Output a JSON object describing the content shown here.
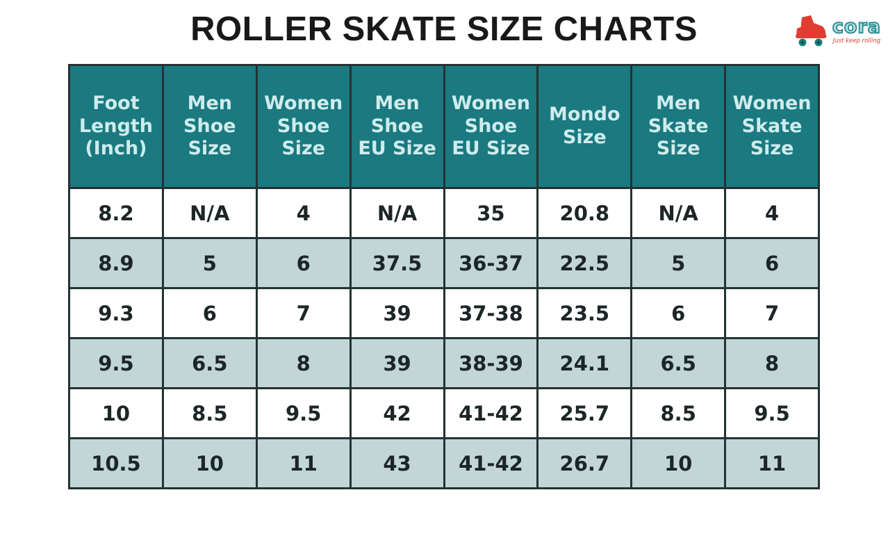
{
  "page_title": "ROLLER SKATE SIZE CHARTS",
  "logo": {
    "brand": "cora",
    "tagline": "Just keep rolling"
  },
  "table": {
    "header_lines": [
      "Foot\nLength\n(Inch)",
      "Men\nShoe\nSize",
      "Women\nShoe\nSize",
      "Men\nShoe\nEU Size",
      "Women\nShoe\nEU Size",
      "Mondo\nSize",
      "Men\nSkate\nSize",
      "Women\nSkate\nSize"
    ]
  },
  "chart_data": {
    "type": "table",
    "title": "ROLLER SKATE SIZE CHARTS",
    "columns": [
      "Foot Length (Inch)",
      "Men Shoe Size",
      "Women Shoe Size",
      "Men Shoe EU Size",
      "Women Shoe EU Size",
      "Mondo Size",
      "Men Skate Size",
      "Women Skate Size"
    ],
    "rows": [
      [
        "8.2",
        "N/A",
        "4",
        "N/A",
        "35",
        "20.8",
        "N/A",
        "4"
      ],
      [
        "8.9",
        "5",
        "6",
        "37.5",
        "36-37",
        "22.5",
        "5",
        "6"
      ],
      [
        "9.3",
        "6",
        "7",
        "39",
        "37-38",
        "23.5",
        "6",
        "7"
      ],
      [
        "9.5",
        "6.5",
        "8",
        "39",
        "38-39",
        "24.1",
        "6.5",
        "8"
      ],
      [
        "10",
        "8.5",
        "9.5",
        "42",
        "41-42",
        "25.7",
        "8.5",
        "9.5"
      ],
      [
        "10.5",
        "10",
        "11",
        "43",
        "41-42",
        "26.7",
        "10",
        "11"
      ]
    ]
  },
  "colors": {
    "header_bg": "#1b7980",
    "header_text": "#cfecec",
    "row_even_bg": "#c2d6d8",
    "row_odd_bg": "#ffffff",
    "border": "#233233",
    "title_text": "#191919",
    "brand_teal": "#2e8f96",
    "brand_red": "#e23b30"
  }
}
